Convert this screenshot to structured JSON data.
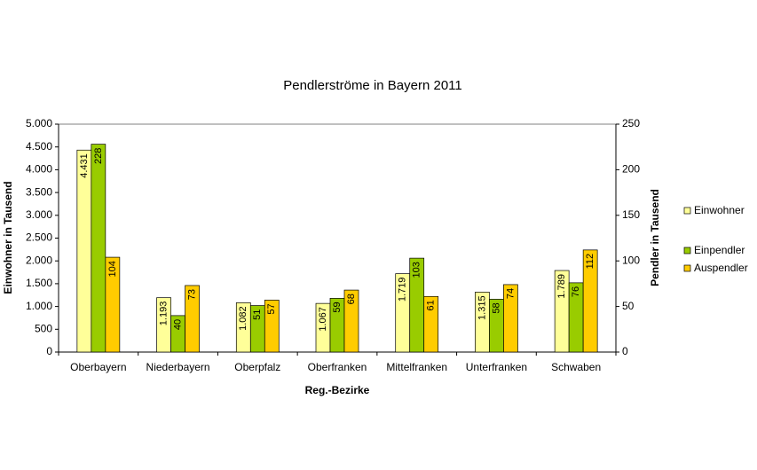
{
  "chart_data": {
    "type": "bar",
    "title": "Pendlerströme in Bayern 2011",
    "x_label": "Reg.-Bezirke",
    "y_label": "Einwohner in Tausend",
    "y2_label": "Pendler in Tausend",
    "categories": [
      "Oberbayern",
      "Niederbayern",
      "Oberpfalz",
      "Oberfranken",
      "Mittelfranken",
      "Unterfranken",
      "Schwaben"
    ],
    "series": [
      {
        "name": "Einwohner",
        "color": "#ffff99",
        "axis": "y",
        "values": [
          4431,
          1193,
          1082,
          1067,
          1719,
          1315,
          1789
        ],
        "value_labels": [
          "4.431",
          "1.193",
          "1.082",
          "1.067",
          "1.719",
          "1.315",
          "1.789"
        ]
      },
      {
        "name": "Einpendler",
        "color": "#99cc00",
        "axis": "y2",
        "values": [
          228,
          40,
          51,
          59,
          103,
          58,
          76
        ]
      },
      {
        "name": "Auspendler",
        "color": "#ffcc00",
        "axis": "y2",
        "values": [
          104,
          73,
          57,
          68,
          61,
          74,
          112
        ]
      }
    ],
    "ylim": [
      0,
      5000
    ],
    "yticks": [
      0,
      500,
      {
        "value": 1000,
        "label": "1.000"
      },
      {
        "value": 1500,
        "label": "1.500"
      },
      {
        "value": 2000,
        "label": "2.000"
      },
      {
        "value": 2500,
        "label": "2.500"
      },
      {
        "value": 3000,
        "label": "3.000"
      },
      {
        "value": 3500,
        "label": "3.500"
      },
      {
        "value": 4000,
        "label": "4.000"
      },
      {
        "value": 4500,
        "label": "4.500"
      },
      {
        "value": 5000,
        "label": "5.000"
      }
    ],
    "y2lim": [
      0,
      250
    ],
    "y2ticks": [
      0,
      50,
      100,
      150,
      200,
      250
    ],
    "grid": false,
    "legend": "right"
  }
}
